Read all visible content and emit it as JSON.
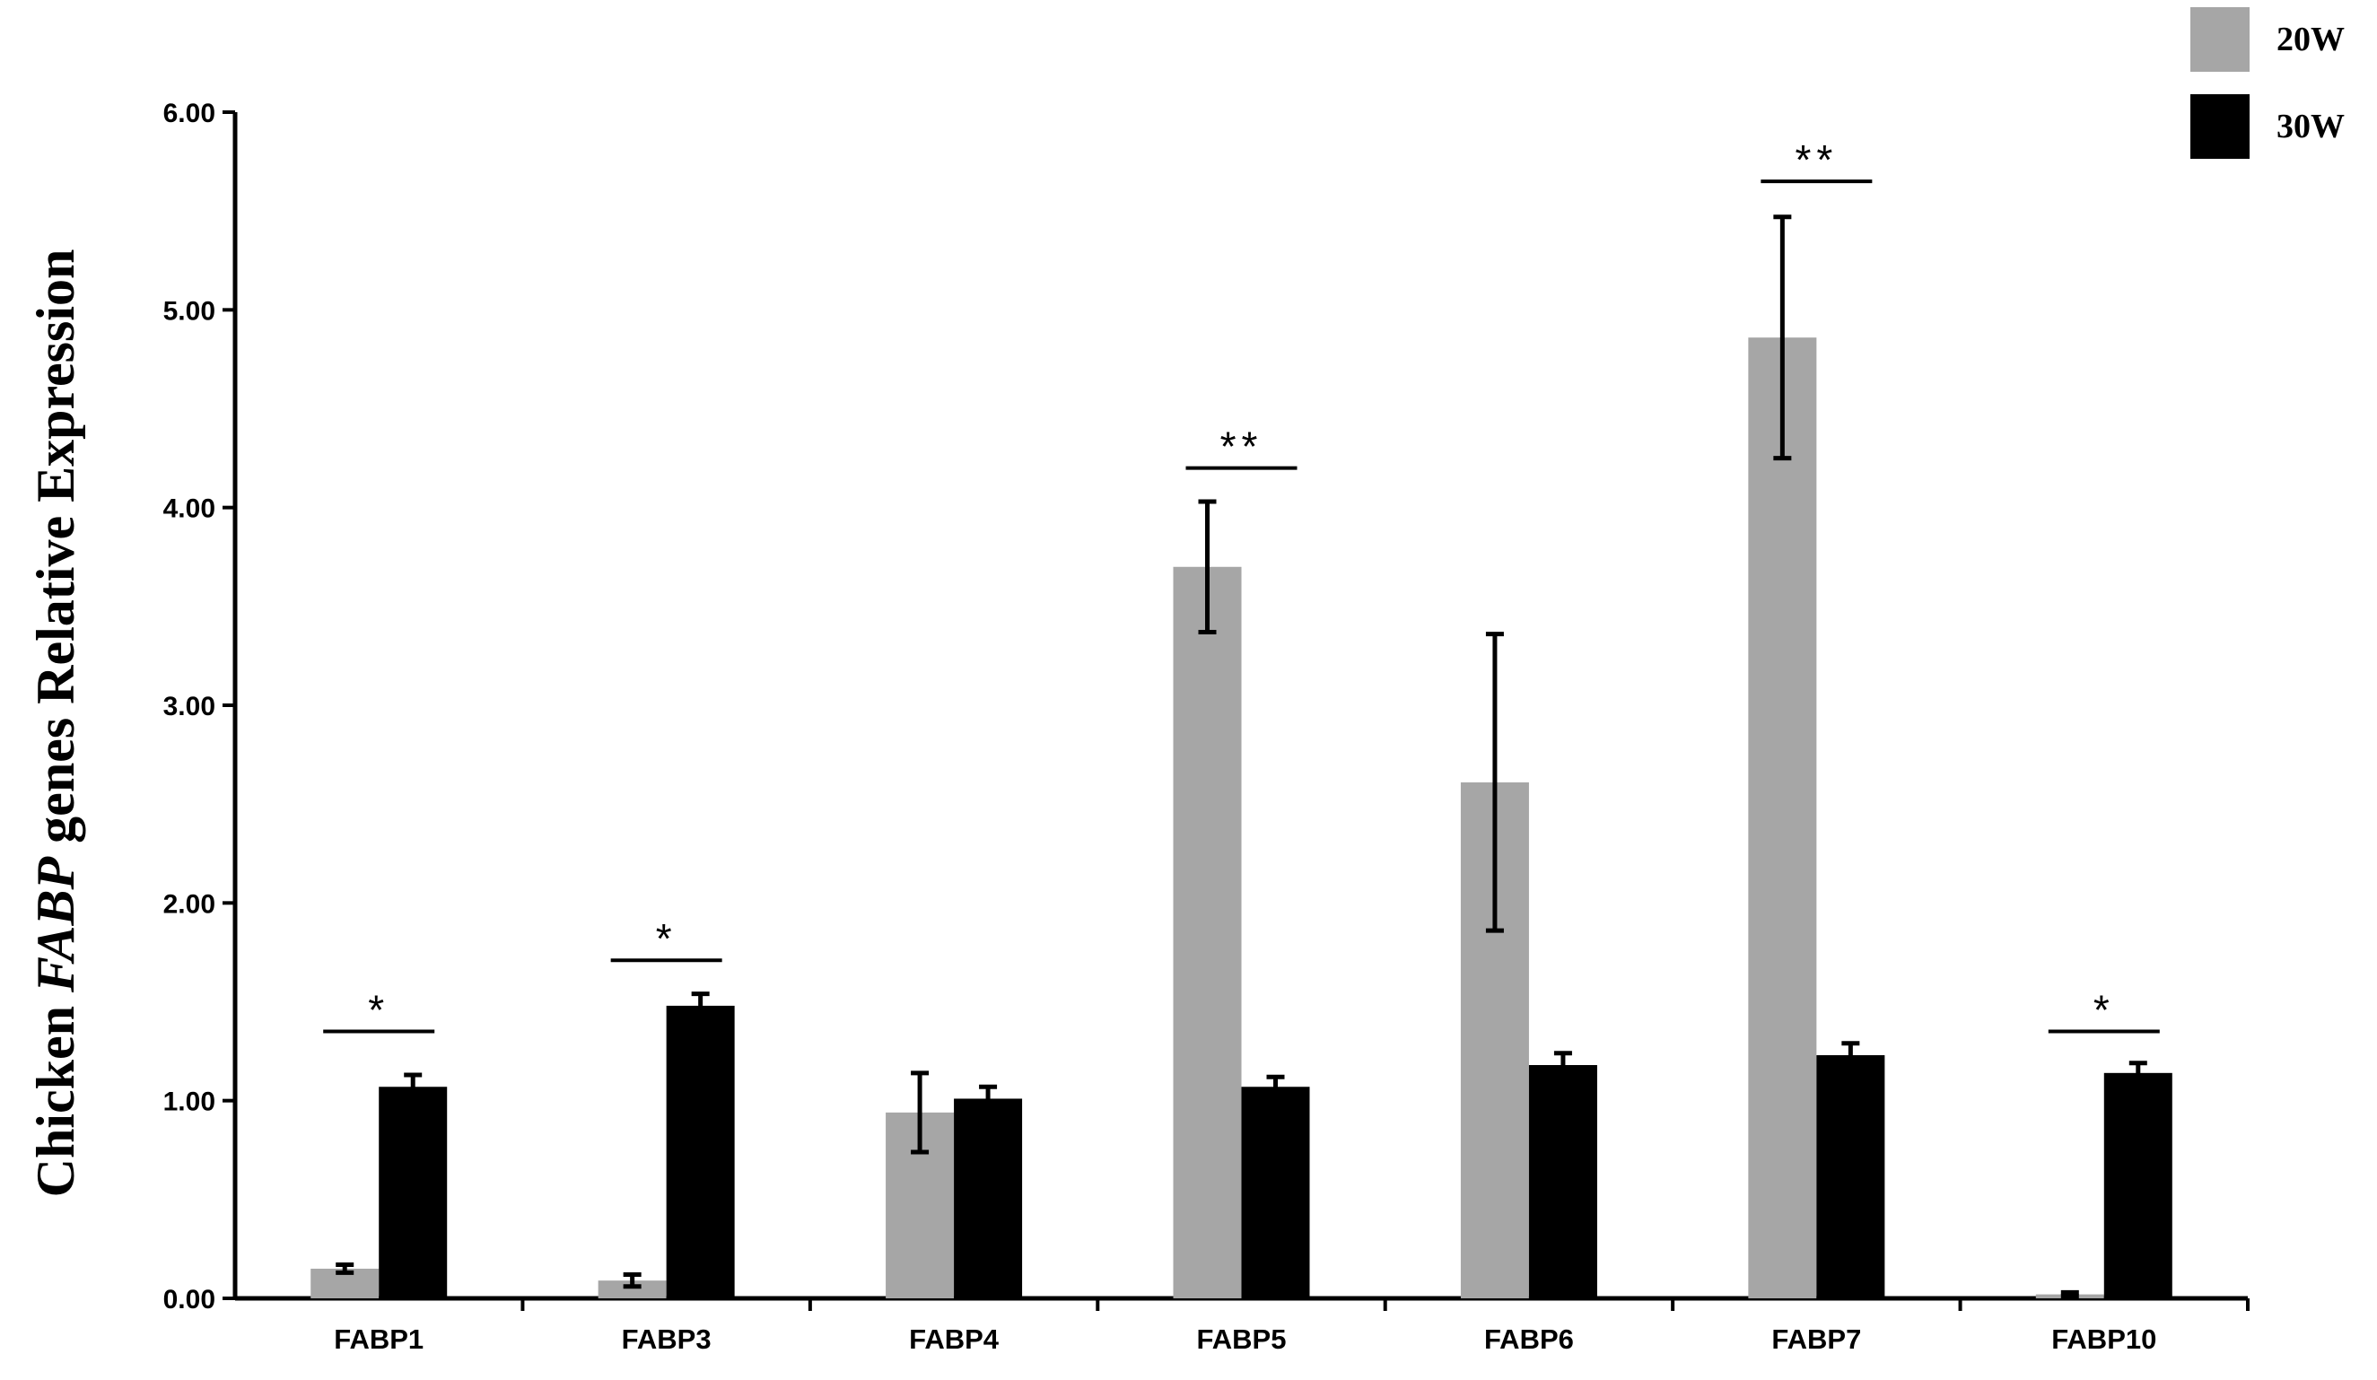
{
  "chart_data": {
    "type": "bar",
    "title": "",
    "xlabel": "",
    "ylabel_parts": {
      "prefix": "Chicken ",
      "italic": "FABP",
      "suffix": "  genes Relative Expression"
    },
    "ylim": [
      0,
      6
    ],
    "yticks": [
      "0.00",
      "1.00",
      "2.00",
      "3.00",
      "4.00",
      "5.00",
      "6.00"
    ],
    "categories": [
      "FABP1",
      "FABP3",
      "FABP4",
      "FABP5",
      "FABP6",
      "FABP7",
      "FABP10"
    ],
    "series": [
      {
        "name": "20W",
        "color": "#a6a6a6",
        "values": [
          0.15,
          0.09,
          0.94,
          3.7,
          2.61,
          4.86,
          0.02
        ],
        "errors": [
          0.02,
          0.03,
          0.2,
          0.33,
          0.75,
          0.61,
          0.01
        ]
      },
      {
        "name": "30W",
        "color": "#000000",
        "values": [
          1.07,
          1.48,
          1.01,
          1.07,
          1.18,
          1.23,
          1.14
        ],
        "errors": [
          0.06,
          0.06,
          0.06,
          0.05,
          0.06,
          0.06,
          0.05
        ]
      }
    ],
    "significance": [
      {
        "category": "FABP1",
        "label": "*",
        "y": 1.35
      },
      {
        "category": "FABP3",
        "label": "*",
        "y": 1.71
      },
      {
        "category": "FABP5",
        "label": "**",
        "y": 4.2
      },
      {
        "category": "FABP7",
        "label": "**",
        "y": 5.65
      },
      {
        "category": "FABP10",
        "label": "*",
        "y": 1.35
      }
    ],
    "legend": {
      "placement": "top-right",
      "entries": [
        {
          "label": "20W",
          "color": "#a6a6a6"
        },
        {
          "label": "30W",
          "color": "#000000"
        }
      ]
    },
    "grid": false
  }
}
